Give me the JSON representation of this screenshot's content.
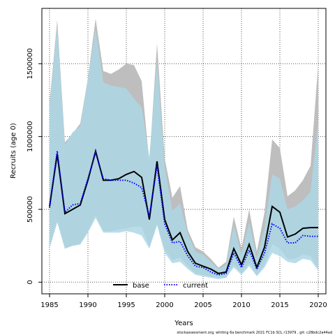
{
  "chart_data": {
    "type": "line",
    "title": "",
    "xlabel": "Years",
    "ylabel": "Recruits (age 0)",
    "xlim": [
      1984,
      2021
    ],
    "ylim": [
      -80000,
      1880000
    ],
    "xticks": [
      1985,
      1990,
      1995,
      2000,
      2005,
      2010,
      2015,
      2020
    ],
    "yticks": [
      0,
      500000,
      1000000,
      1500000
    ],
    "ytick_labels": [
      "0",
      "500000",
      "1000000",
      "1500000"
    ],
    "grid": true,
    "legend_position": "bottom-center",
    "x": [
      1985,
      1986,
      1987,
      1988,
      1989,
      1990,
      1991,
      1992,
      1993,
      1994,
      1995,
      1996,
      1997,
      1998,
      1999,
      2000,
      2001,
      2002,
      2003,
      2004,
      2005,
      2006,
      2007,
      2008,
      2009,
      2010,
      2011,
      2012,
      2013,
      2014,
      2015,
      2016,
      2017,
      2018,
      2019,
      2020
    ],
    "series": [
      {
        "name": "base",
        "color": "#000000",
        "style": "solid",
        "values": [
          520000,
          880000,
          470000,
          500000,
          530000,
          700000,
          900000,
          700000,
          700000,
          710000,
          740000,
          760000,
          720000,
          430000,
          830000,
          430000,
          290000,
          340000,
          210000,
          130000,
          110000,
          90000,
          60000,
          70000,
          230000,
          120000,
          260000,
          100000,
          240000,
          520000,
          480000,
          310000,
          330000,
          370000,
          375000,
          375000
        ],
        "lower": [
          240000,
          420000,
          230000,
          250000,
          260000,
          350000,
          460000,
          350000,
          350000,
          360000,
          370000,
          380000,
          380000,
          240000,
          400000,
          220000,
          150000,
          170000,
          110000,
          60000,
          50000,
          40000,
          30000,
          30000,
          120000,
          60000,
          130000,
          50000,
          120000,
          260000,
          230000,
          160000,
          160000,
          190000,
          180000,
          90000
        ],
        "upper": [
          1230000,
          1800000,
          960000,
          1020000,
          1090000,
          1400000,
          1810000,
          1450000,
          1430000,
          1460000,
          1500000,
          1490000,
          1380000,
          820000,
          1640000,
          850000,
          580000,
          660000,
          360000,
          240000,
          210000,
          160000,
          100000,
          140000,
          450000,
          230000,
          500000,
          210000,
          480000,
          980000,
          920000,
          590000,
          630000,
          700000,
          800000,
          1500000
        ]
      },
      {
        "name": "current",
        "color": "#0000ff",
        "style": "dotted",
        "values": [
          510000,
          900000,
          480000,
          530000,
          540000,
          710000,
          890000,
          710000,
          700000,
          700000,
          700000,
          680000,
          650000,
          450000,
          800000,
          400000,
          270000,
          280000,
          180000,
          110000,
          100000,
          70000,
          50000,
          60000,
          200000,
          100000,
          220000,
          90000,
          200000,
          400000,
          370000,
          270000,
          270000,
          320000,
          315000,
          315000
        ],
        "lower": [
          230000,
          410000,
          230000,
          250000,
          260000,
          340000,
          440000,
          340000,
          340000,
          340000,
          350000,
          340000,
          320000,
          230000,
          390000,
          200000,
          130000,
          140000,
          90000,
          50000,
          40000,
          30000,
          20000,
          30000,
          100000,
          50000,
          110000,
          40000,
          100000,
          200000,
          180000,
          140000,
          130000,
          160000,
          150000,
          80000
        ],
        "upper": [
          1200000,
          1760000,
          940000,
          1030000,
          1070000,
          1390000,
          1740000,
          1370000,
          1350000,
          1340000,
          1330000,
          1260000,
          1200000,
          860000,
          1520000,
          790000,
          490000,
          540000,
          330000,
          210000,
          190000,
          140000,
          90000,
          120000,
          390000,
          190000,
          410000,
          170000,
          370000,
          740000,
          710000,
          500000,
          520000,
          560000,
          620000,
          1100000
        ]
      }
    ]
  },
  "footer": "stockassessment.org, whiting 6a benchmark 2021 FC1b SCL r13979 , git: c28bdc2a44ad",
  "colors": {
    "band_base": "#bebebe",
    "band_current": "#add8e6",
    "band_overlap": "#a3c7d6"
  }
}
